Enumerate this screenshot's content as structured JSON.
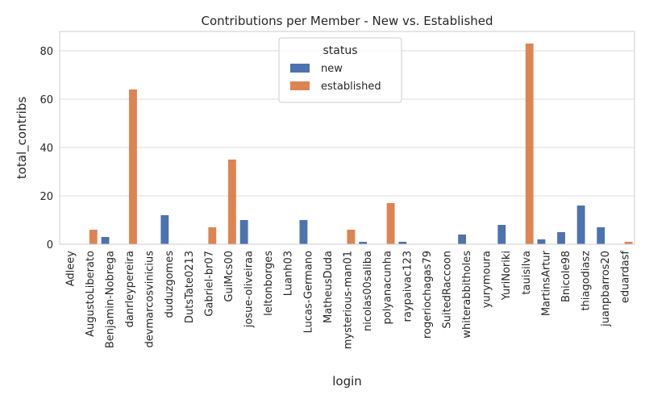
{
  "chart_data": {
    "type": "bar",
    "title": "Contributions per Member - New vs. Established",
    "xlabel": "login",
    "ylabel": "total_contribs",
    "ylim": [
      0,
      88
    ],
    "yticks": [
      0,
      20,
      40,
      60,
      80
    ],
    "grid": true,
    "legend": {
      "title": "status",
      "placement": "upper-center"
    },
    "categories": [
      "Adleey",
      "AugustoLiberato",
      "Benjamin-Nobrega",
      "danrleypereira",
      "devmarcosvinicius",
      "duduzgomes",
      "DutsTate0213",
      "Gabriel-br07",
      "GuiMcs00",
      "josue-oliveiraa",
      "leltonborges",
      "Luanh03",
      "Lucas-Germano",
      "MatheusDuda",
      "mysterious-man01",
      "nicolas00saliba",
      "polyanacunha",
      "raypaivac123",
      "rogeriochagas79",
      "SuitedRaccoon",
      "whiterabbitholes",
      "yurymoura",
      "YuriNoriki",
      "tauisilva",
      "MartinsArtur",
      "Bnicole98",
      "thiagodiasz",
      "juanpbarros20",
      "eduardasf"
    ],
    "series": [
      {
        "name": "new",
        "color": "#4c72b0",
        "values": [
          0,
          null,
          3,
          null,
          0,
          12,
          0,
          null,
          null,
          10,
          0,
          0,
          10,
          0,
          null,
          1,
          null,
          1,
          0,
          0,
          4,
          0,
          8,
          null,
          2,
          5,
          16,
          7,
          null
        ]
      },
      {
        "name": "established",
        "color": "#dd8452",
        "values": [
          null,
          6,
          null,
          64,
          null,
          null,
          null,
          7,
          35,
          null,
          null,
          null,
          null,
          null,
          6,
          null,
          17,
          null,
          null,
          null,
          null,
          null,
          null,
          83,
          null,
          null,
          null,
          null,
          1
        ]
      }
    ]
  }
}
